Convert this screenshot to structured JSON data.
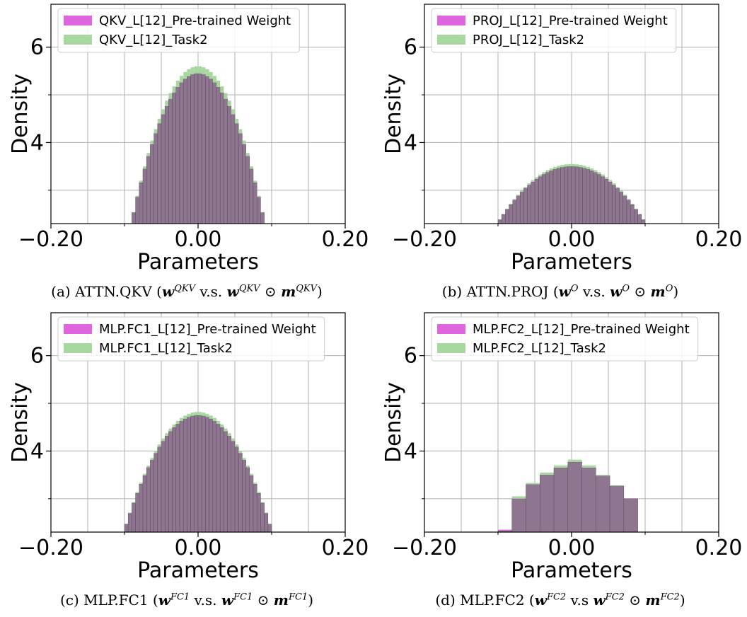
{
  "colors": {
    "pretrained": "#e066e0",
    "task": "#a8d8a0",
    "overlap": "#8e7690",
    "grid": "#b0b0b0"
  },
  "chart_data": [
    {
      "type": "bar",
      "xlabel": "Parameters",
      "ylabel": "Density",
      "xlim": [
        -0.2,
        0.2
      ],
      "ylim": [
        2.3,
        6.9
      ],
      "xticks": [
        "−0.20",
        "0.00",
        "0.20"
      ],
      "yticks": [
        "4",
        "6"
      ],
      "legend_position": "top-left",
      "caption": {
        "prefix": "(a) ATTN.QKV (",
        "a": "w",
        "a_sup": "QKV",
        "vs": " v.s. ",
        "b": "w",
        "b_sup": "QKV",
        "op": " ⊙ ",
        "c": "m",
        "c_sup": "QKV",
        "suffix": ")"
      },
      "series": [
        {
          "name": "QKV_L[12]_Pre-trained Weight",
          "color": "#e066e0",
          "peak": 5.45,
          "range": [
            -0.09,
            0.09
          ],
          "bin_width": 0.005
        },
        {
          "name": "QKV_L[12]_Task2",
          "color": "#a8d8a0",
          "peak": 5.6,
          "range": [
            -0.09,
            0.09
          ],
          "bin_width": 0.005
        }
      ]
    },
    {
      "type": "bar",
      "xlabel": "Parameters",
      "ylabel": "Density",
      "xlim": [
        -0.2,
        0.2
      ],
      "ylim": [
        2.3,
        6.9
      ],
      "xticks": [
        "−0.20",
        "0.00",
        "0.20"
      ],
      "yticks": [
        "4",
        "6"
      ],
      "legend_position": "top-left",
      "caption": {
        "prefix": "(b) ATTN.PROJ (",
        "a": "w",
        "a_sup": "O",
        "vs": " v.s. ",
        "b": "w",
        "b_sup": "O",
        "op": " ⊙ ",
        "c": "m",
        "c_sup": "O",
        "suffix": ")"
      },
      "series": [
        {
          "name": "PROJ_L[12]_Pre-trained Weight",
          "color": "#e066e0",
          "peak": 3.5,
          "range": [
            -0.1,
            0.1
          ],
          "bin_width": 0.005
        },
        {
          "name": "PROJ_L[12]_Task2",
          "color": "#a8d8a0",
          "peak": 3.55,
          "range": [
            -0.1,
            0.1
          ],
          "bin_width": 0.005
        }
      ]
    },
    {
      "type": "bar",
      "xlabel": "Parameters",
      "ylabel": "Density",
      "xlim": [
        -0.2,
        0.2
      ],
      "ylim": [
        2.3,
        6.9
      ],
      "xticks": [
        "−0.20",
        "0.00",
        "0.20"
      ],
      "yticks": [
        "4",
        "6"
      ],
      "legend_position": "top-left",
      "caption": {
        "prefix": "(c) MLP.FC1 (",
        "a": "w",
        "a_sup": "FC1",
        "vs": " v.s. ",
        "b": "w",
        "b_sup": "FC1",
        "op": " ⊙ ",
        "c": "m",
        "c_sup": "FC1",
        "suffix": ")"
      },
      "series": [
        {
          "name": "MLP.FC1_L[12]_Pre-trained Weight",
          "color": "#e066e0",
          "peak": 4.75,
          "range": [
            -0.1,
            0.1
          ],
          "bin_width": 0.005
        },
        {
          "name": "MLP.FC1_L[12]_Task2",
          "color": "#a8d8a0",
          "peak": 4.82,
          "range": [
            -0.1,
            0.1
          ],
          "bin_width": 0.005
        }
      ]
    },
    {
      "type": "bar",
      "xlabel": "Parameters",
      "ylabel": "Density",
      "xlim": [
        -0.2,
        0.2
      ],
      "ylim": [
        2.3,
        6.9
      ],
      "xticks": [
        "−0.20",
        "0.00",
        "0.20"
      ],
      "yticks": [
        "4",
        "6"
      ],
      "legend_position": "top-left",
      "caption": {
        "prefix": "(d) MLP.FC2 (",
        "a": "w",
        "a_sup": "FC2",
        "vs": " v.s ",
        "b": "w",
        "b_sup": "FC2",
        "op": " ⊙ ",
        "c": "m",
        "c_sup": "FC2",
        "suffix": ")"
      },
      "series": [
        {
          "name": "MLP.FC2_L[12]_Pre-trained Weight",
          "color": "#e066e0",
          "values": [
            2.35,
            3.0,
            3.3,
            3.5,
            3.65,
            3.77,
            3.65,
            3.48,
            3.27,
            3.0
          ],
          "peak": 3.77,
          "range": [
            -0.1,
            0.09
          ],
          "bin_width": 0.019
        },
        {
          "name": "MLP.FC2_L[12]_Task2",
          "color": "#a8d8a0",
          "values": [
            2.33,
            3.05,
            3.33,
            3.55,
            3.7,
            3.82,
            3.7,
            3.5,
            3.28,
            3.0
          ],
          "peak": 3.82,
          "range": [
            -0.1,
            0.09
          ],
          "bin_width": 0.019
        }
      ]
    }
  ]
}
